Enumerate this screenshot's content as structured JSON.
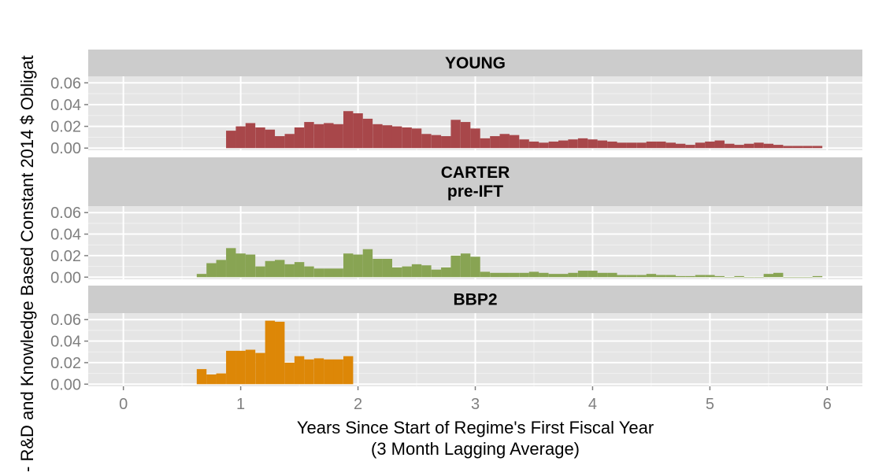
{
  "chart_data": {
    "type": "bar",
    "xlabel": "Years Since Start of Regime's First Fiscal Year",
    "xlabel_sub": "(3 Month Lagging Average)",
    "ylabel": "- R&D and Knowledge Based Constant 2014 $ Obligat",
    "x_ticks": [
      "0",
      "1",
      "2",
      "3",
      "4",
      "5",
      "6"
    ],
    "y_ticks": [
      "0.00",
      "0.02",
      "0.04",
      "0.06"
    ],
    "xlim": [
      -0.3,
      6.3
    ],
    "ylim": [
      -0.002,
      0.066
    ],
    "bin_width": 0.0833,
    "grid": true,
    "panels": [
      {
        "name": "YOUNG",
        "color": "#a8474a",
        "x": [
          0.917,
          1.0,
          1.083,
          1.167,
          1.25,
          1.333,
          1.417,
          1.5,
          1.583,
          1.667,
          1.75,
          1.833,
          1.917,
          2.0,
          2.083,
          2.167,
          2.25,
          2.333,
          2.417,
          2.5,
          2.583,
          2.667,
          2.75,
          2.833,
          2.917,
          3.0,
          3.083,
          3.167,
          3.25,
          3.333,
          3.417,
          3.5,
          3.583,
          3.667,
          3.75,
          3.833,
          3.917,
          4.0,
          4.083,
          4.167,
          4.25,
          4.333,
          4.417,
          4.5,
          4.583,
          4.667,
          4.75,
          4.833,
          4.917,
          5.0,
          5.083,
          5.167,
          5.25,
          5.333,
          5.417,
          5.5,
          5.583,
          5.667,
          5.75,
          5.833,
          5.917
        ],
        "values": [
          0.016,
          0.02,
          0.023,
          0.019,
          0.017,
          0.011,
          0.013,
          0.019,
          0.024,
          0.022,
          0.023,
          0.022,
          0.034,
          0.032,
          0.027,
          0.022,
          0.021,
          0.02,
          0.019,
          0.018,
          0.013,
          0.012,
          0.011,
          0.026,
          0.024,
          0.018,
          0.009,
          0.011,
          0.013,
          0.012,
          0.008,
          0.006,
          0.005,
          0.006,
          0.007,
          0.008,
          0.009,
          0.008,
          0.007,
          0.006,
          0.005,
          0.005,
          0.005,
          0.006,
          0.006,
          0.005,
          0.004,
          0.003,
          0.005,
          0.006,
          0.007,
          0.004,
          0.003,
          0.004,
          0.005,
          0.004,
          0.003,
          0.002,
          0.002,
          0.002,
          0.002
        ]
      },
      {
        "name": "CARTER\npre-IFT",
        "color": "#88a453",
        "x": [
          0.667,
          0.75,
          0.833,
          0.917,
          1.0,
          1.083,
          1.167,
          1.25,
          1.333,
          1.417,
          1.5,
          1.583,
          1.667,
          1.75,
          1.833,
          1.917,
          2.0,
          2.083,
          2.167,
          2.25,
          2.333,
          2.417,
          2.5,
          2.583,
          2.667,
          2.75,
          2.833,
          2.917,
          3.0,
          3.083,
          3.167,
          3.25,
          3.333,
          3.417,
          3.5,
          3.583,
          3.667,
          3.75,
          3.833,
          3.917,
          4.0,
          4.083,
          4.167,
          4.25,
          4.333,
          4.417,
          4.5,
          4.583,
          4.667,
          4.75,
          4.833,
          4.917,
          5.0,
          5.083,
          5.167,
          5.25,
          5.333,
          5.417,
          5.5,
          5.583,
          5.667,
          5.75,
          5.833,
          5.917
        ],
        "values": [
          0.003,
          0.013,
          0.016,
          0.027,
          0.022,
          0.021,
          0.01,
          0.015,
          0.016,
          0.012,
          0.014,
          0.01,
          0.008,
          0.008,
          0.008,
          0.022,
          0.021,
          0.026,
          0.017,
          0.017,
          0.009,
          0.01,
          0.012,
          0.011,
          0.007,
          0.009,
          0.02,
          0.022,
          0.019,
          0.005,
          0.004,
          0.004,
          0.004,
          0.004,
          0.005,
          0.004,
          0.003,
          0.003,
          0.004,
          0.006,
          0.006,
          0.004,
          0.004,
          0.002,
          0.002,
          0.002,
          0.003,
          0.002,
          0.002,
          0.001,
          0.001,
          0.002,
          0.002,
          0.001,
          0.0,
          0.001,
          0.0,
          0.0,
          0.003,
          0.004,
          0.0,
          0.0,
          0.0,
          0.001
        ]
      },
      {
        "name": "BBP2",
        "color": "#dd8707",
        "x": [
          0.667,
          0.75,
          0.833,
          0.917,
          1.0,
          1.083,
          1.167,
          1.25,
          1.333,
          1.417,
          1.5,
          1.583,
          1.667,
          1.75,
          1.833,
          1.917
        ],
        "values": [
          0.014,
          0.009,
          0.01,
          0.031,
          0.031,
          0.032,
          0.029,
          0.059,
          0.058,
          0.02,
          0.026,
          0.023,
          0.024,
          0.023,
          0.023,
          0.026
        ]
      }
    ]
  }
}
